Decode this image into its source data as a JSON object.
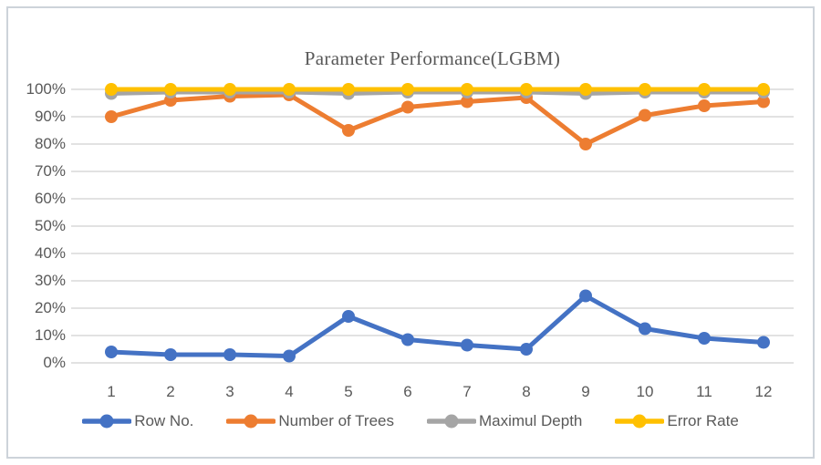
{
  "figure": {
    "background": "#ffffff",
    "border_color": "#cdd3da",
    "text_color": "#595959",
    "gridline_color": "#d9d9d9"
  },
  "chart_data": {
    "type": "line",
    "title": "Parameter Performance(LGBM)",
    "categories": [
      "1",
      "2",
      "3",
      "4",
      "5",
      "6",
      "7",
      "8",
      "9",
      "10",
      "11",
      "12"
    ],
    "series": [
      {
        "name": "Row No.",
        "color": "#4472C4",
        "values": [
          4,
          3,
          3,
          2.5,
          17,
          8.5,
          6.5,
          5,
          24.5,
          12.5,
          9,
          7.5
        ]
      },
      {
        "name": "Number of Trees",
        "color": "#ED7D31",
        "values": [
          90,
          96,
          97.5,
          98,
          85,
          93.5,
          95.5,
          97,
          80,
          90.5,
          94,
          95.5
        ]
      },
      {
        "name": "Maximul Depth",
        "color": "#A5A5A5",
        "values": [
          98.5,
          99,
          99,
          99,
          98.5,
          99,
          99,
          99,
          98.5,
          99,
          99,
          99
        ]
      },
      {
        "name": "Error Rate",
        "color": "#FFC000",
        "values": [
          100,
          100,
          100,
          100,
          100,
          100,
          100,
          100,
          100,
          100,
          100,
          100
        ]
      }
    ],
    "y_axis": {
      "min": 0,
      "max": 100,
      "step": 10,
      "tick_labels": [
        "0%",
        "10%",
        "20%",
        "30%",
        "40%",
        "50%",
        "60%",
        "70%",
        "80%",
        "90%",
        "100%"
      ],
      "format": "percent"
    },
    "x_axis": {
      "tick_labels": [
        "1",
        "2",
        "3",
        "4",
        "5",
        "6",
        "7",
        "8",
        "9",
        "10",
        "11",
        "12"
      ]
    },
    "grid": "horizontal",
    "legend_position": "bottom"
  }
}
